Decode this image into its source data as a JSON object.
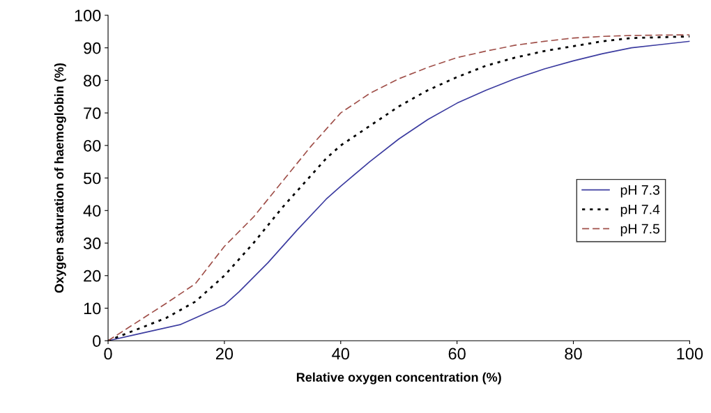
{
  "chart_data": {
    "type": "line",
    "xlabel": "Relative oxygen concentration (%)",
    "ylabel": "Oxygen saturation of haemoglobin (%)",
    "xlim": [
      0,
      100
    ],
    "xticks": [
      0,
      20,
      40,
      60,
      80,
      100
    ],
    "ylim": [
      0,
      100
    ],
    "yticks": [
      0,
      10,
      20,
      30,
      40,
      50,
      60,
      70,
      80,
      90,
      100
    ],
    "grid": false,
    "legend": "center right",
    "marker": "none",
    "series": [
      {
        "name": "pH 7.3",
        "color": "#3c3ca0",
        "line_style": "solid",
        "x": [
          0,
          5,
          12.5,
          15,
          20,
          22.5,
          27.5,
          32.5,
          37.5,
          40,
          45,
          50,
          55,
          60,
          65,
          70,
          75,
          80,
          85,
          90,
          95,
          100
        ],
        "values": [
          0,
          2,
          5,
          7,
          11,
          15,
          24,
          34,
          43.5,
          47.5,
          55,
          62,
          68,
          73,
          77,
          80.5,
          83.5,
          86,
          88.2,
          90,
          91,
          92
        ]
      },
      {
        "name": "pH 7.4",
        "color": "#000000",
        "line_style": "dotted",
        "x": [
          0,
          10,
          15,
          20,
          25,
          30,
          35,
          37.5,
          40,
          45,
          50,
          55,
          60,
          65,
          70,
          75,
          80,
          85,
          90,
          100
        ],
        "values": [
          0,
          7,
          12,
          20,
          30,
          41,
          51,
          56,
          60,
          66,
          72,
          77,
          81,
          84.5,
          87,
          89,
          90.5,
          92,
          93,
          93.5
        ]
      },
      {
        "name": "pH 7.5",
        "color": "#a0504a",
        "line_style": "dashed",
        "x": [
          0,
          10,
          15,
          20,
          25,
          30,
          35,
          40,
          45,
          50,
          55,
          60,
          65,
          70,
          75,
          80,
          85,
          90,
          100
        ],
        "values": [
          0,
          11.5,
          17.5,
          29,
          38,
          49,
          60,
          70,
          76,
          80.5,
          84,
          87,
          89,
          90.8,
          92,
          93,
          93.5,
          93.8,
          94
        ]
      }
    ]
  }
}
